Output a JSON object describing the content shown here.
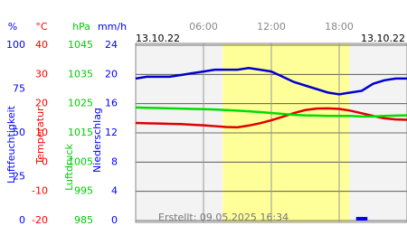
{
  "chart_data": {
    "type": "multi-axis-weather",
    "date_left": "13.10.22",
    "date_right": "13.10.22",
    "footer": "Erstellt: 09.05.2025 16:34",
    "x": [
      0,
      1,
      2,
      3,
      4,
      5,
      6,
      7,
      8,
      9,
      10,
      11,
      12,
      13,
      14,
      15,
      16,
      17,
      18,
      19,
      20,
      21,
      22,
      23,
      24
    ],
    "xlim": [
      0,
      24
    ],
    "xticks": [
      {
        "value": 6,
        "label": "06:00"
      },
      {
        "value": 12,
        "label": "12:00"
      },
      {
        "value": 18,
        "label": "18:00"
      }
    ],
    "daylight": [
      7.7,
      18.9
    ],
    "axes": [
      {
        "unit": "%",
        "label": "Luftfeuchtigkeit",
        "color": "#0000ff",
        "ylim": [
          0,
          100
        ],
        "yticks": [
          0,
          25,
          50,
          75,
          100
        ]
      },
      {
        "unit": "°C",
        "label": "Temperatur",
        "color": "#ff0000",
        "ylim": [
          -20,
          40
        ],
        "yticks": [
          -20,
          -10,
          0,
          10,
          20,
          30,
          40
        ]
      },
      {
        "unit": "hPa",
        "label": "Luftdruck",
        "color": "#00cc00",
        "ylim": [
          985,
          1045
        ],
        "yticks": [
          985,
          995,
          1005,
          1015,
          1025,
          1035,
          1045
        ]
      },
      {
        "unit": "mm/h",
        "label": "Niederschlag",
        "color": "#0000ff",
        "ylim": [
          0,
          24
        ],
        "yticks": [
          0,
          4,
          8,
          12,
          16,
          20,
          24
        ]
      }
    ],
    "series": [
      {
        "name": "Luftfeuchtigkeit",
        "kind": "line",
        "axis": 0,
        "color": "#0000cc",
        "values": [
          81,
          82,
          82,
          82,
          83,
          84,
          85,
          86,
          86,
          86,
          87,
          86,
          85,
          82,
          79,
          77,
          75,
          73,
          72,
          73,
          74,
          78,
          80,
          81,
          81
        ]
      },
      {
        "name": "Temperatur",
        "kind": "line",
        "axis": 1,
        "color": "#dd0000",
        "values": [
          13.4,
          13.3,
          13.2,
          13.1,
          13.0,
          12.8,
          12.6,
          12.3,
          12.0,
          11.9,
          12.5,
          13.3,
          14.3,
          15.5,
          16.8,
          17.8,
          18.3,
          18.4,
          18.2,
          17.6,
          16.7,
          15.8,
          15.0,
          14.6,
          14.5
        ]
      },
      {
        "name": "Luftdruck",
        "kind": "line",
        "axis": 2,
        "color": "#00dd00",
        "values": [
          1023.7,
          1023.6,
          1023.5,
          1023.4,
          1023.3,
          1023.2,
          1023.1,
          1023.0,
          1022.8,
          1022.6,
          1022.4,
          1022.1,
          1021.8,
          1021.5,
          1021.2,
          1021.0,
          1020.9,
          1020.8,
          1020.8,
          1020.8,
          1020.6,
          1020.6,
          1020.8,
          1020.9,
          1021.0
        ]
      },
      {
        "name": "Niederschlag",
        "kind": "bar",
        "axis": 3,
        "color": "#0000ff",
        "values": [
          0,
          0,
          0,
          0,
          0,
          0,
          0,
          0,
          0,
          0,
          0,
          0,
          0,
          0,
          0,
          0,
          0,
          0,
          0,
          0,
          0.5,
          0,
          0,
          0,
          0
        ]
      }
    ],
    "grid": true
  }
}
